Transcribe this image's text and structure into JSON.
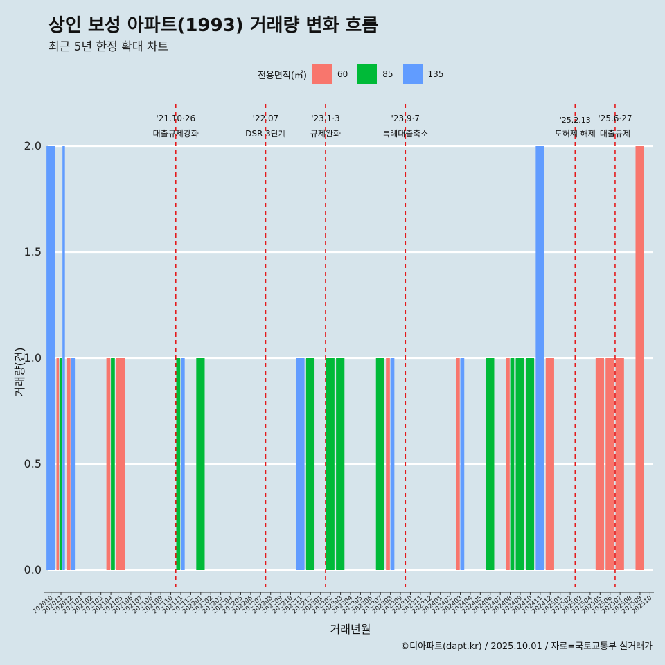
{
  "title": "상인 보성 아파트(1993) 거래량 변화 흐름",
  "subtitle": "최근 5년 한정 확대 차트",
  "caption": "©디아파트(dapt.kr) / 2025.10.01 / 자료=국토교통부 실거래가",
  "legend": {
    "title": "전용면적(㎡)",
    "items": [
      {
        "label": "60",
        "color": "#f8766d"
      },
      {
        "label": "85",
        "color": "#00ba38"
      },
      {
        "label": "135",
        "color": "#619cff"
      }
    ]
  },
  "chart_data": {
    "type": "bar",
    "xlabel": "거래년월",
    "ylabel": "거래량(건)",
    "ylim": [
      0,
      2
    ],
    "yticks": [
      "0.0",
      "0.5",
      "1.0",
      "1.5",
      "2.0"
    ],
    "categories": [
      "202010",
      "202011",
      "202012",
      "202101",
      "202102",
      "202103",
      "202104",
      "202105",
      "202106",
      "202107",
      "202108",
      "202109",
      "202110",
      "202111",
      "202112",
      "202201",
      "202202",
      "202203",
      "202204",
      "202205",
      "202206",
      "202207",
      "202208",
      "202209",
      "202210",
      "202211",
      "202212",
      "202301",
      "202302",
      "202303",
      "202304",
      "202305",
      "202306",
      "202307",
      "202308",
      "202309",
      "202310",
      "202311",
      "202312",
      "202401",
      "202402",
      "202403",
      "202404",
      "202405",
      "202406",
      "202407",
      "202408",
      "202409",
      "202410",
      "202411",
      "202412",
      "202501",
      "202502",
      "202503",
      "202504",
      "202505",
      "202506",
      "202507",
      "202508",
      "202509",
      "202510"
    ],
    "series": [
      {
        "name": "60",
        "color": "#f8766d",
        "values": [
          0,
          1,
          1,
          0,
          0,
          0,
          1,
          1,
          0,
          0,
          0,
          0,
          0,
          0,
          0,
          0,
          0,
          0,
          0,
          0,
          0,
          0,
          0,
          0,
          0,
          0,
          0,
          0,
          0,
          0,
          0,
          0,
          0,
          0,
          1,
          0,
          0,
          0,
          0,
          0,
          0,
          1,
          0,
          0,
          0,
          0,
          1,
          0,
          0,
          0,
          1,
          0,
          0,
          0,
          0,
          1,
          1,
          1,
          0,
          2,
          0
        ]
      },
      {
        "name": "85",
        "color": "#00ba38",
        "values": [
          0,
          1,
          0,
          0,
          0,
          0,
          1,
          0,
          0,
          0,
          0,
          0,
          0,
          1,
          0,
          1,
          0,
          0,
          0,
          0,
          0,
          0,
          0,
          0,
          0,
          0,
          1,
          0,
          1,
          1,
          0,
          0,
          0,
          1,
          0,
          0,
          0,
          0,
          0,
          0,
          0,
          0,
          0,
          0,
          1,
          0,
          1,
          1,
          1,
          0,
          0,
          0,
          0,
          0,
          0,
          0,
          0,
          0,
          0,
          0,
          0
        ]
      },
      {
        "name": "135",
        "color": "#619cff",
        "values": [
          2,
          2,
          1,
          0,
          0,
          0,
          0,
          0,
          0,
          0,
          0,
          0,
          0,
          1,
          0,
          0,
          0,
          0,
          0,
          0,
          0,
          0,
          0,
          0,
          0,
          1,
          0,
          0,
          0,
          0,
          0,
          0,
          0,
          0,
          1,
          0,
          0,
          0,
          0,
          0,
          0,
          1,
          0,
          0,
          0,
          0,
          0,
          0,
          0,
          2,
          0,
          0,
          0,
          0,
          0,
          0,
          0,
          0,
          0,
          0,
          0
        ]
      }
    ],
    "annotations": [
      {
        "date": "'21.10·26",
        "label": "대출규제강화",
        "position": 12.5
      },
      {
        "date": "'22.07",
        "label": "DSR 3단계",
        "position": 21.5
      },
      {
        "date": "'23.1·3",
        "label": "규제완화",
        "position": 27.5
      },
      {
        "date": "'23.9·7",
        "label": "특례대출축소",
        "position": 35.5
      },
      {
        "date": "'25.2.13",
        "label": "토허제 해제",
        "position": 52.5
      },
      {
        "date": "'25.6·27",
        "label": "대출규제",
        "position": 56.5
      }
    ]
  }
}
